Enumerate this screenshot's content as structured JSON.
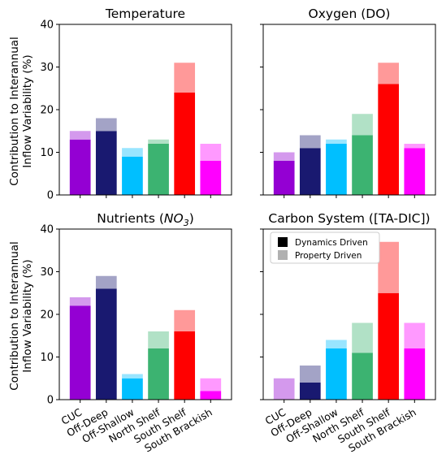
{
  "ylabel_line1": "Contribution to Interannual",
  "ylabel_line2": "Inflow Variability (%)",
  "chart_data": {
    "type": "bar",
    "categories": [
      "CUC",
      "Off-Deep",
      "Off-Shallow",
      "North Shelf",
      "South Shelf",
      "South Brackish"
    ],
    "category_colors": [
      "#9400D3",
      "#191970",
      "#00BFFF",
      "#3CB371",
      "#FF0000",
      "#FF00FF"
    ],
    "ylim": [
      0,
      40
    ],
    "yticks": [
      0,
      10,
      20,
      30,
      40
    ],
    "legend": {
      "placement": "top-left",
      "panel": 3,
      "entries": [
        {
          "label": "Dynamics Driven",
          "color": "#000000"
        },
        {
          "label": "Property Driven",
          "color": "#b0b0b0"
        }
      ]
    },
    "panels": [
      {
        "title": "Temperature",
        "title_sub": "",
        "title_post": "",
        "series": [
          {
            "name": "Dynamics Driven",
            "values": [
              13,
              15,
              9,
              12,
              24,
              8
            ]
          },
          {
            "name": "Property Driven",
            "values": [
              2,
              3,
              2,
              1,
              7,
              4
            ]
          }
        ]
      },
      {
        "title": "Oxygen (DO)",
        "title_sub": "",
        "title_post": "",
        "series": [
          {
            "name": "Dynamics Driven",
            "values": [
              8,
              11,
              12,
              14,
              26,
              11
            ]
          },
          {
            "name": "Property Driven",
            "values": [
              2,
              3,
              1,
              5,
              5,
              1
            ]
          }
        ]
      },
      {
        "title": "Nutrients (NO",
        "title_sub": "3",
        "title_post": ")",
        "series": [
          {
            "name": "Dynamics Driven",
            "values": [
              22,
              26,
              5,
              12,
              16,
              2
            ]
          },
          {
            "name": "Property Driven",
            "values": [
              2,
              3,
              1,
              4,
              5,
              3
            ]
          }
        ]
      },
      {
        "title": "Carbon System ([TA-DIC])",
        "title_sub": "",
        "title_post": "",
        "series": [
          {
            "name": "Dynamics Driven",
            "values": [
              0,
              4,
              12,
              11,
              25,
              12
            ]
          },
          {
            "name": "Property Driven",
            "values": [
              5,
              4,
              2,
              7,
              12,
              6
            ]
          }
        ]
      }
    ]
  }
}
